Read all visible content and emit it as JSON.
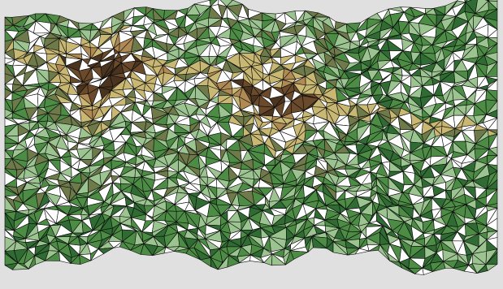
{
  "scene": {
    "background_color": "#e0e0e0",
    "wire_color": "#0a0a0a",
    "palette": {
      "deep_green": "#2f6b33",
      "green": "#4d8c45",
      "light_green": "#9cc490",
      "olive": "#6f7a4a",
      "khaki": "#c9b873",
      "tan": "#b08a54",
      "brown": "#6a4a2a",
      "dark_brown": "#4a3420",
      "snow": "#ffffff"
    }
  }
}
